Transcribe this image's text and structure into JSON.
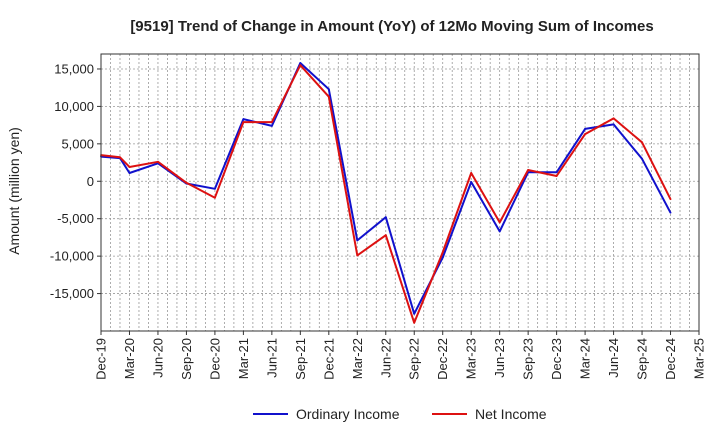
{
  "chart_data": {
    "type": "line",
    "title": "[9519]  Trend of Change in Amount (YoY) of 12Mo Moving Sum of Incomes",
    "xlabel": "",
    "ylabel": "Amount (million yen)",
    "ylim": [
      -20000,
      17000
    ],
    "yticks": [
      15000,
      10000,
      5000,
      0,
      -5000,
      -10000,
      -15000
    ],
    "ytick_labels": [
      "15,000",
      "10,000",
      "5,000",
      "0",
      "-5,000",
      "-10,000",
      "-15,000"
    ],
    "xtick_labels": [
      "Dec-19",
      "Mar-20",
      "Jun-20",
      "Sep-20",
      "Dec-20",
      "Mar-21",
      "Jun-21",
      "Sep-21",
      "Dec-21",
      "Mar-22",
      "Jun-22",
      "Sep-22",
      "Dec-22",
      "Mar-23",
      "Jun-23",
      "Sep-23",
      "Dec-23",
      "Mar-24",
      "Jun-24",
      "Sep-24",
      "Dec-24",
      "Mar-25"
    ],
    "x": [
      "Dec-19",
      "Jan-20",
      "Feb-20",
      "Mar-20",
      "Apr-20",
      "May-20",
      "Jun-20",
      "Jul-20",
      "Aug-20",
      "Sep-20",
      "Oct-20",
      "Nov-20",
      "Dec-20",
      "Jan-21",
      "Feb-21",
      "Mar-21",
      "Apr-21",
      "May-21",
      "Jun-21",
      "Jul-21",
      "Aug-21",
      "Sep-21",
      "Oct-21",
      "Nov-21",
      "Dec-21",
      "Jan-22",
      "Feb-22",
      "Mar-22",
      "Apr-22",
      "May-22",
      "Jun-22",
      "Jul-22",
      "Aug-22",
      "Sep-22",
      "Oct-22",
      "Nov-22",
      "Dec-22",
      "Jan-23",
      "Feb-23",
      "Mar-23",
      "Apr-23",
      "May-23",
      "Jun-23",
      "Jul-23",
      "Aug-23",
      "Sep-23",
      "Oct-23",
      "Nov-23",
      "Dec-23",
      "Jan-24",
      "Feb-24",
      "Mar-24",
      "Apr-24",
      "May-24",
      "Jun-24",
      "Jul-24",
      "Aug-24",
      "Sep-24",
      "Oct-24",
      "Nov-24",
      "Dec-24",
      "Jan-25",
      "Feb-25",
      "Mar-25"
    ],
    "grid": true,
    "legend_position": "bottom-center",
    "series": [
      {
        "name": "Ordinary Income",
        "color": "#1111cc",
        "points": [
          {
            "x": "Dec-19",
            "y": 3300
          },
          {
            "x": "Feb-20",
            "y": 3100
          },
          {
            "x": "Mar-20",
            "y": 1100
          },
          {
            "x": "Jun-20",
            "y": 2400
          },
          {
            "x": "Sep-20",
            "y": -300
          },
          {
            "x": "Dec-20",
            "y": -1000
          },
          {
            "x": "Mar-21",
            "y": 8300
          },
          {
            "x": "Jun-21",
            "y": 7400
          },
          {
            "x": "Sep-21",
            "y": 15800
          },
          {
            "x": "Dec-21",
            "y": 12300
          },
          {
            "x": "Mar-22",
            "y": -7900
          },
          {
            "x": "Jun-22",
            "y": -4800
          },
          {
            "x": "Sep-22",
            "y": -17700
          },
          {
            "x": "Dec-22",
            "y": -10200
          },
          {
            "x": "Mar-23",
            "y": -100
          },
          {
            "x": "Jun-23",
            "y": -6700
          },
          {
            "x": "Sep-23",
            "y": 1200
          },
          {
            "x": "Dec-23",
            "y": 1200
          },
          {
            "x": "Mar-24",
            "y": 7000
          },
          {
            "x": "Jun-24",
            "y": 7600
          },
          {
            "x": "Sep-24",
            "y": 3000
          },
          {
            "x": "Dec-24",
            "y": -4200
          }
        ]
      },
      {
        "name": "Net Income",
        "color": "#dd1111",
        "points": [
          {
            "x": "Dec-19",
            "y": 3500
          },
          {
            "x": "Feb-20",
            "y": 3200
          },
          {
            "x": "Mar-20",
            "y": 1900
          },
          {
            "x": "Jun-20",
            "y": 2600
          },
          {
            "x": "Sep-20",
            "y": -200
          },
          {
            "x": "Dec-20",
            "y": -2200
          },
          {
            "x": "Mar-21",
            "y": 7900
          },
          {
            "x": "Jun-21",
            "y": 7900
          },
          {
            "x": "Sep-21",
            "y": 15500
          },
          {
            "x": "Dec-21",
            "y": 11300
          },
          {
            "x": "Mar-22",
            "y": -9900
          },
          {
            "x": "Jun-22",
            "y": -7200
          },
          {
            "x": "Sep-22",
            "y": -18900
          },
          {
            "x": "Dec-22",
            "y": -9500
          },
          {
            "x": "Mar-23",
            "y": 1100
          },
          {
            "x": "Jun-23",
            "y": -5500
          },
          {
            "x": "Sep-23",
            "y": 1500
          },
          {
            "x": "Dec-23",
            "y": 700
          },
          {
            "x": "Mar-24",
            "y": 6300
          },
          {
            "x": "Jun-24",
            "y": 8400
          },
          {
            "x": "Sep-24",
            "y": 5200
          },
          {
            "x": "Dec-24",
            "y": -2400
          }
        ]
      }
    ]
  }
}
